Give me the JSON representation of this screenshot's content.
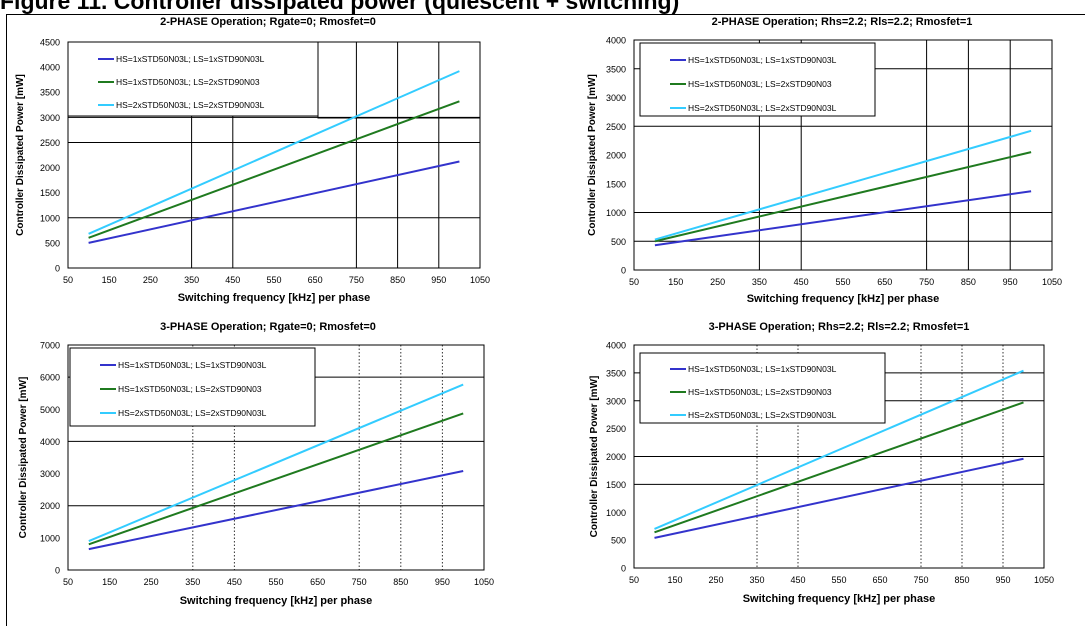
{
  "figure": {
    "title": "Figure 11. Controller dissipated power (quiescent + switching)"
  },
  "chart_data": [
    {
      "type": "line",
      "title": "2-PHASE Operation; Rgate=0; Rmosfet=0",
      "xlabel": "Switching frequency [kHz] per phase",
      "ylabel": "Controller Dissipated Power [mW]",
      "xlim": [
        50,
        1050
      ],
      "ylim": [
        0,
        4500
      ],
      "xticks": [
        "50",
        "150",
        "250",
        "350",
        "450",
        "550",
        "650",
        "750",
        "850",
        "950",
        "1050"
      ],
      "yticks": [
        "0",
        "500",
        "1000",
        "1500",
        "2000",
        "2500",
        "3000",
        "3500",
        "4000",
        "4500"
      ],
      "vgrid": [
        350,
        450,
        750,
        850,
        950
      ],
      "vgrid_style": "solid",
      "hgrid": [
        1000,
        2500,
        3000
      ],
      "legend_position": "top-left",
      "x": [
        100,
        1000
      ],
      "series": [
        {
          "name": "HS=1xSTD50N03L; LS=1xSTD90N03L",
          "color": "#3333cc",
          "values": [
            500,
            2120
          ]
        },
        {
          "name": "HS=1xSTD50N03L; LS=2xSTD90N03",
          "color": "#1f7a1f",
          "values": [
            600,
            3320
          ]
        },
        {
          "name": "HS=2xSTD50N03L; LS=2xSTD90N03L",
          "color": "#33ccff",
          "values": [
            680,
            3920
          ]
        }
      ]
    },
    {
      "type": "line",
      "title": "2-PHASE Operation; Rhs=2.2; Rls=2.2; Rmosfet=1",
      "xlabel": "Switching frequency [kHz] per phase",
      "ylabel": "Controller Dissipated Power [mW]",
      "xlim": [
        50,
        1050
      ],
      "ylim": [
        0,
        4000
      ],
      "xticks": [
        "50",
        "150",
        "250",
        "350",
        "450",
        "550",
        "650",
        "750",
        "850",
        "950",
        "1050"
      ],
      "yticks": [
        "0",
        "500",
        "1000",
        "1500",
        "2000",
        "2500",
        "3000",
        "3500",
        "4000"
      ],
      "vgrid": [
        350,
        450,
        750,
        850,
        950
      ],
      "vgrid_style": "solid",
      "hgrid": [
        500,
        1000,
        2500,
        3500
      ],
      "legend_position": "top-left",
      "x": [
        100,
        1000
      ],
      "series": [
        {
          "name": "HS=1xSTD50N03L; LS=1xSTD90N03L",
          "color": "#3333cc",
          "values": [
            430,
            1370
          ]
        },
        {
          "name": "HS=1xSTD50N03L; LS=2xSTD90N03",
          "color": "#1f7a1f",
          "values": [
            500,
            2050
          ]
        },
        {
          "name": "HS=2xSTD50N03L; LS=2xSTD90N03L",
          "color": "#33ccff",
          "values": [
            530,
            2420
          ]
        }
      ]
    },
    {
      "type": "line",
      "title": "3-PHASE Operation; Rgate=0; Rmosfet=0",
      "xlabel": "Switching frequency [kHz] per phase",
      "ylabel": "Controller Dissipated Power [mW]",
      "xlim": [
        50,
        1050
      ],
      "ylim": [
        0,
        7000
      ],
      "xticks": [
        "50",
        "150",
        "250",
        "350",
        "450",
        "550",
        "650",
        "750",
        "850",
        "950",
        "1050"
      ],
      "yticks": [
        "0",
        "1000",
        "2000",
        "3000",
        "4000",
        "5000",
        "6000",
        "7000"
      ],
      "vgrid": [
        350,
        450,
        750,
        850,
        950
      ],
      "vgrid_style": "dotted",
      "hgrid": [
        2000,
        4000,
        6000
      ],
      "legend_position": "top-left",
      "x": [
        100,
        1000
      ],
      "series": [
        {
          "name": "HS=1xSTD50N03L; LS=1xSTD90N03L",
          "color": "#3333cc",
          "values": [
            650,
            3080
          ]
        },
        {
          "name": "HS=1xSTD50N03L; LS=2xSTD90N03",
          "color": "#1f7a1f",
          "values": [
            800,
            4870
          ]
        },
        {
          "name": "HS=2xSTD50N03L; LS=2xSTD90N03L",
          "color": "#33ccff",
          "values": [
            900,
            5770
          ]
        }
      ]
    },
    {
      "type": "line",
      "title": "3-PHASE Operation; Rhs=2.2; Rls=2.2; Rmosfet=1",
      "xlabel": "Switching frequency [kHz] per phase",
      "ylabel": "Controller Dissipated Power [mW]",
      "xlim": [
        50,
        1050
      ],
      "ylim": [
        0,
        4000
      ],
      "xticks": [
        "50",
        "150",
        "250",
        "350",
        "450",
        "550",
        "650",
        "750",
        "850",
        "950",
        "1050"
      ],
      "yticks": [
        "0",
        "500",
        "1000",
        "1500",
        "2000",
        "2500",
        "3000",
        "3500",
        "4000"
      ],
      "vgrid": [
        350,
        450,
        750,
        850,
        950
      ],
      "vgrid_style": "dotted",
      "hgrid": [
        1500,
        2000,
        3000,
        3500
      ],
      "legend_position": "top-left",
      "x": [
        100,
        1000
      ],
      "series": [
        {
          "name": "HS=1xSTD50N03L; LS=1xSTD90N03L",
          "color": "#3333cc",
          "values": [
            540,
            1960
          ]
        },
        {
          "name": "HS=1xSTD50N03L; LS=2xSTD90N03",
          "color": "#1f7a1f",
          "values": [
            640,
            2970
          ]
        },
        {
          "name": "HS=2xSTD50N03L; LS=2xSTD90N03L",
          "color": "#33ccff",
          "values": [
            700,
            3540
          ]
        }
      ]
    }
  ]
}
